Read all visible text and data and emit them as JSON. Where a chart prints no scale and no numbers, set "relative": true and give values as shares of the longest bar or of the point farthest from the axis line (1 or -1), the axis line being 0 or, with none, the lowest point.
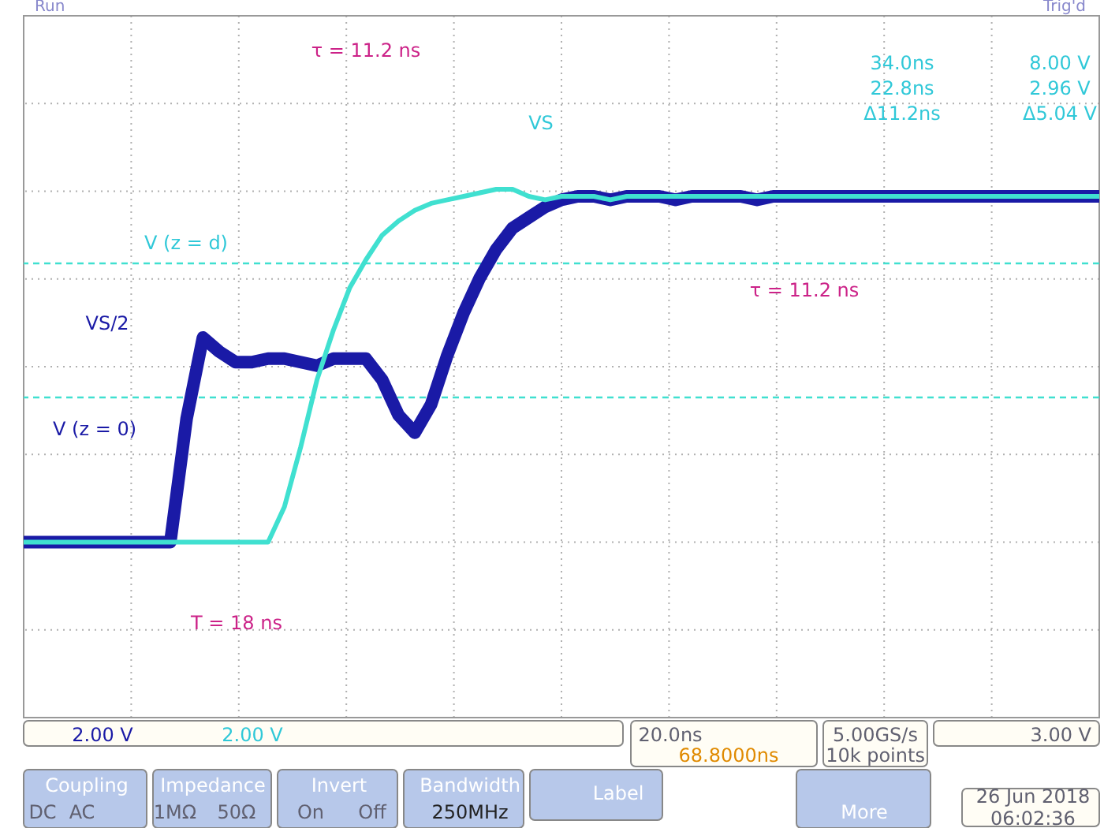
{
  "chart_data": {
    "type": "line",
    "relative": true,
    "grid": true,
    "line_style": "solid",
    "marker": "none",
    "categories": [
      null,
      null,
      null,
      null,
      null,
      null,
      null,
      null,
      null,
      null,
      null,
      null,
      null,
      null,
      null,
      null,
      null,
      null,
      null,
      null,
      null,
      null,
      null,
      null,
      null,
      null,
      null,
      null,
      null,
      null,
      null,
      null,
      null,
      null,
      null,
      null,
      null,
      null,
      null,
      null,
      null,
      null,
      null,
      null,
      null,
      null,
      null,
      null,
      null,
      null,
      null,
      null,
      null,
      null,
      null,
      null,
      null,
      null,
      null,
      null,
      null,
      null,
      null,
      null,
      null,
      null,
      null
    ],
    "series": [
      {
        "color": "#1a1aa6",
        "values": [
          0,
          0,
          0,
          0,
          0,
          0,
          0,
          0,
          0,
          0,
          0.35,
          0.58,
          0.54,
          0.51,
          0.51,
          0.52,
          0.52,
          0.51,
          0.5,
          0.52,
          0.52,
          0.52,
          0.46,
          0.36,
          0.31,
          0.39,
          0.53,
          0.65,
          0.75,
          0.83,
          0.89,
          0.92,
          0.95,
          0.97,
          0.98,
          0.98,
          0.97,
          0.98,
          0.98,
          0.98,
          0.97,
          0.98,
          0.98,
          0.98,
          0.98,
          0.97,
          0.98,
          0.98,
          0.98,
          0.98,
          0.98,
          0.98,
          0.98,
          0.98,
          0.98,
          0.98,
          0.98,
          0.98,
          0.98,
          0.98,
          0.98,
          0.98,
          0.98,
          0.98,
          0.98,
          0.98,
          0.98
        ]
      },
      {
        "color": "#40e0d0",
        "values": [
          0,
          0,
          0,
          0,
          0,
          0,
          0,
          0,
          0,
          0,
          0,
          0,
          0,
          0,
          0,
          0,
          0.1,
          0.27,
          0.46,
          0.6,
          0.72,
          0.8,
          0.87,
          0.91,
          0.94,
          0.96,
          0.97,
          0.98,
          0.99,
          1.0,
          1.0,
          0.98,
          0.97,
          0.98,
          0.98,
          0.98,
          0.97,
          0.98,
          0.98,
          0.98,
          0.98,
          0.98,
          0.98,
          0.98,
          0.98,
          0.98,
          0.98,
          0.98,
          0.98,
          0.98,
          0.98,
          0.98,
          0.98,
          0.98,
          0.98,
          0.98,
          0.98,
          0.98,
          0.98,
          0.98,
          0.98,
          0.98,
          0.98,
          0.98,
          0.98,
          0.98,
          0.98
        ]
      }
    ],
    "ref_lines": [
      {
        "axis": "y",
        "value": 0.79,
        "color": "#40e0d0",
        "line_style": "dashed"
      },
      {
        "axis": "y",
        "value": 0.41,
        "color": "#40e0d0",
        "line_style": "dashed"
      }
    ],
    "annotations": [
      "Run",
      "Trig'd",
      "τ = 11.2 ns",
      "VS",
      "V (z = d)",
      "VS/2",
      "V (z = 0)",
      "T = 18 ns",
      "τ = 11.2 ns",
      "34.0ns",
      "8.00 V",
      "22.8ns",
      "2.96 V",
      "Δ11.2ns",
      "Δ5.04 V",
      "2.00 V",
      "2.00 V",
      "20.0ns",
      "68.8000ns",
      "5.00GS/s",
      "10k points",
      "3.00 V",
      "Coupling",
      "DC",
      "AC",
      "Impedance",
      "1MΩ",
      "50Ω",
      "Invert",
      "On",
      "Off",
      "Bandwidth",
      "250MHz",
      "Label",
      "More",
      "26 Jun 2018",
      "06:02:36"
    ]
  }
}
